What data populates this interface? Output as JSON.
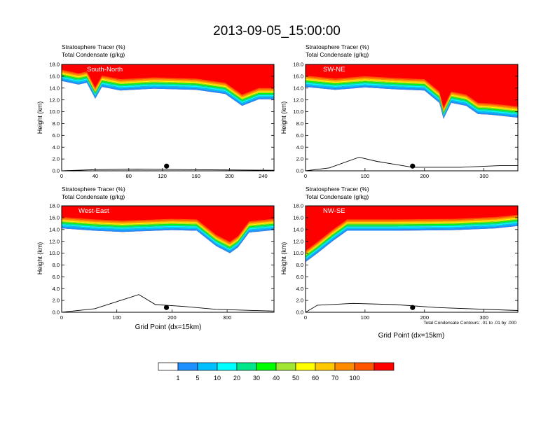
{
  "figure": {
    "title": "2013-09-05_15:00:00",
    "field_label_1": "Stratosphere Tracer   (%)",
    "field_label_2": "Total Condensate   (g/kg)",
    "ylabel": "Height (km)",
    "xlabel": "Grid Point (dx=15km)",
    "contour_note": "Total Condensate Contours: .01 to .01 by .000"
  },
  "chart_data": [
    {
      "type": "heatmap",
      "panel": "South-North",
      "x_range": [
        0,
        253
      ],
      "x_ticks": [
        "0",
        "40",
        "80",
        "120",
        "160",
        "200",
        "240"
      ],
      "x_tick_values": [
        0,
        40,
        80,
        120,
        160,
        200,
        240
      ],
      "ylim": [
        0,
        18
      ],
      "y_ticks": [
        "0.0",
        "2.0",
        "4.0",
        "6.0",
        "8.0",
        "10.0",
        "12.0",
        "14.0",
        "16.0",
        "18.0"
      ],
      "y_tick_values": [
        0,
        2,
        4,
        6,
        8,
        10,
        12,
        14,
        16,
        18
      ],
      "marker_x": 125,
      "tracer_transition_km": [
        [
          0,
          15.2
        ],
        [
          20,
          14.6
        ],
        [
          30,
          14.9
        ],
        [
          40,
          12.2
        ],
        [
          48,
          14.2
        ],
        [
          70,
          13.6
        ],
        [
          110,
          13.9
        ],
        [
          160,
          13.7
        ],
        [
          195,
          13.0
        ],
        [
          215,
          11.0
        ],
        [
          235,
          12.1
        ],
        [
          253,
          12.1
        ]
      ],
      "terrain_km": [
        [
          0,
          0
        ],
        [
          40,
          0.2
        ],
        [
          90,
          0.3
        ],
        [
          150,
          0.2
        ],
        [
          253,
          0.1
        ]
      ]
    },
    {
      "type": "heatmap",
      "panel": "SW-NE",
      "x_range": [
        0,
        357
      ],
      "x_ticks": [
        "0",
        "100",
        "200",
        "300"
      ],
      "x_tick_values": [
        0,
        100,
        200,
        300
      ],
      "ylim": [
        0,
        18
      ],
      "y_ticks": [
        "0.0",
        "2.0",
        "4.0",
        "6.0",
        "8.0",
        "10.0",
        "12.0",
        "14.0",
        "16.0",
        "18.0"
      ],
      "y_tick_values": [
        0,
        2,
        4,
        6,
        8,
        10,
        12,
        14,
        16,
        18
      ],
      "marker_x": 180,
      "tracer_transition_km": [
        [
          0,
          14.2
        ],
        [
          50,
          13.7
        ],
        [
          100,
          14.1
        ],
        [
          150,
          13.8
        ],
        [
          200,
          13.6
        ],
        [
          225,
          11.5
        ],
        [
          232,
          8.8
        ],
        [
          245,
          11.5
        ],
        [
          270,
          11.0
        ],
        [
          290,
          9.6
        ],
        [
          310,
          9.5
        ],
        [
          357,
          9.0
        ]
      ],
      "terrain_km": [
        [
          0,
          0
        ],
        [
          40,
          0.5
        ],
        [
          90,
          2.3
        ],
        [
          120,
          1.6
        ],
        [
          150,
          1.1
        ],
        [
          180,
          0.6
        ],
        [
          260,
          0.6
        ],
        [
          330,
          0.9
        ],
        [
          357,
          0.9
        ]
      ]
    },
    {
      "type": "heatmap",
      "panel": "West-East",
      "x_range": [
        0,
        385
      ],
      "x_ticks": [
        "0",
        "100",
        "200",
        "300"
      ],
      "x_tick_values": [
        0,
        100,
        200,
        300
      ],
      "ylim": [
        0,
        18
      ],
      "y_ticks": [
        "0.0",
        "2.0",
        "4.0",
        "6.0",
        "8.0",
        "10.0",
        "12.0",
        "14.0",
        "16.0",
        "18.0"
      ],
      "y_tick_values": [
        0,
        2,
        4,
        6,
        8,
        10,
        12,
        14,
        16,
        18
      ],
      "marker_x": 190,
      "tracer_transition_km": [
        [
          0,
          14.2
        ],
        [
          60,
          13.8
        ],
        [
          110,
          13.6
        ],
        [
          200,
          13.9
        ],
        [
          245,
          13.8
        ],
        [
          280,
          11.2
        ],
        [
          305,
          10.0
        ],
        [
          320,
          11.0
        ],
        [
          340,
          13.5
        ],
        [
          385,
          13.9
        ]
      ],
      "terrain_km": [
        [
          0,
          0
        ],
        [
          60,
          0.6
        ],
        [
          100,
          1.8
        ],
        [
          140,
          3.0
        ],
        [
          170,
          1.3
        ],
        [
          220,
          1.0
        ],
        [
          280,
          0.5
        ],
        [
          385,
          0.2
        ]
      ]
    },
    {
      "type": "heatmap",
      "panel": "NW-SE",
      "x_range": [
        0,
        357
      ],
      "x_ticks": [
        "0",
        "100",
        "200",
        "300"
      ],
      "x_tick_values": [
        0,
        100,
        200,
        300
      ],
      "ylim": [
        0,
        18
      ],
      "y_ticks": [
        "0.0",
        "2.0",
        "4.0",
        "6.0",
        "8.0",
        "10.0",
        "12.0",
        "14.0",
        "16.0",
        "18.0"
      ],
      "y_tick_values": [
        0,
        2,
        4,
        6,
        8,
        10,
        12,
        14,
        16,
        18
      ],
      "marker_x": 180,
      "tracer_transition_km": [
        [
          0,
          8.5
        ],
        [
          20,
          10.0
        ],
        [
          45,
          12.0
        ],
        [
          70,
          13.8
        ],
        [
          150,
          13.8
        ],
        [
          250,
          13.9
        ],
        [
          320,
          14.2
        ],
        [
          357,
          14.6
        ]
      ],
      "terrain_km": [
        [
          0,
          0
        ],
        [
          20,
          1.2
        ],
        [
          80,
          1.5
        ],
        [
          150,
          1.3
        ],
        [
          220,
          0.8
        ],
        [
          357,
          0.3
        ]
      ]
    }
  ],
  "colorbar": {
    "labels": [
      "1",
      "5",
      "10",
      "20",
      "30",
      "40",
      "50",
      "60",
      "70",
      "100"
    ],
    "colors": [
      "#ffffff",
      "#1e90ff",
      "#00bfff",
      "#00ffff",
      "#00e68a",
      "#00ff00",
      "#a0e632",
      "#ffff00",
      "#ffc800",
      "#ff8c00",
      "#ff5500",
      "#ff0000"
    ]
  }
}
